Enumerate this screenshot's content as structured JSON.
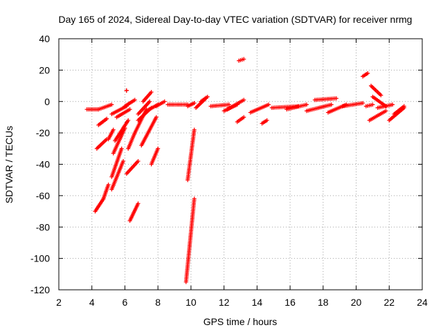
{
  "chart_data": {
    "type": "scatter",
    "title": "Day 165 of 2024, Sidereal Day-to-day VTEC variation (SDTVAR) for receiver nrmg",
    "xlabel": "GPS time / hours",
    "ylabel": "SDTVAR / TECUs",
    "xlim": [
      2,
      24
    ],
    "ylim": [
      -120,
      40
    ],
    "x_ticks": [
      "2",
      "4",
      "6",
      "8",
      "10",
      "12",
      "14",
      "16",
      "18",
      "20",
      "22",
      "24"
    ],
    "y_ticks": [
      "40",
      "20",
      "0",
      "-20",
      "-40",
      "-60",
      "-80",
      "-100",
      "-120"
    ],
    "grid": true,
    "marker": "+",
    "color": "#ff0000",
    "segments": [
      {
        "x": [
          3.7,
          4.4
        ],
        "y": [
          -5,
          -5
        ]
      },
      {
        "x": [
          4.4,
          5.2
        ],
        "y": [
          -5,
          -2
        ]
      },
      {
        "x": [
          4.2,
          4.7
        ],
        "y": [
          -70,
          -62
        ]
      },
      {
        "x": [
          4.7,
          5.0
        ],
        "y": [
          -62,
          -53
        ]
      },
      {
        "x": [
          4.3,
          4.9
        ],
        "y": [
          -30,
          -24
        ]
      },
      {
        "x": [
          4.4,
          4.9
        ],
        "y": [
          -15,
          -11
        ]
      },
      {
        "x": [
          5.0,
          5.3
        ],
        "y": [
          -24,
          -18
        ]
      },
      {
        "x": [
          5.2,
          5.9
        ],
        "y": [
          -56,
          -38
        ]
      },
      {
        "x": [
          5.2,
          5.8
        ],
        "y": [
          -48,
          -30
        ]
      },
      {
        "x": [
          5.3,
          6.0
        ],
        "y": [
          -33,
          -17
        ]
      },
      {
        "x": [
          5.4,
          6.2
        ],
        "y": [
          -25,
          -12
        ]
      },
      {
        "x": [
          5.5,
          6.3
        ],
        "y": [
          -10,
          -5
        ]
      },
      {
        "x": [
          5.2,
          6.1
        ],
        "y": [
          -8,
          -3
        ]
      },
      {
        "x": [
          6.0,
          6.6
        ],
        "y": [
          -3,
          1
        ]
      },
      {
        "x": [
          6.1,
          6.1
        ],
        "y": [
          7,
          7
        ]
      },
      {
        "x": [
          6.2,
          6.6
        ],
        "y": [
          -30,
          -20
        ]
      },
      {
        "x": [
          6.1,
          6.8
        ],
        "y": [
          -46,
          -38
        ]
      },
      {
        "x": [
          6.3,
          6.8
        ],
        "y": [
          -76,
          -65
        ]
      },
      {
        "x": [
          6.6,
          7.3
        ],
        "y": [
          -20,
          -5
        ]
      },
      {
        "x": [
          6.8,
          7.6
        ],
        "y": [
          -12,
          -4
        ]
      },
      {
        "x": [
          7.0,
          7.9
        ],
        "y": [
          -28,
          -10
        ]
      },
      {
        "x": [
          7.6,
          8.0
        ],
        "y": [
          -40,
          -30
        ]
      },
      {
        "x": [
          6.8,
          7.5
        ],
        "y": [
          -8,
          0
        ]
      },
      {
        "x": [
          7.1,
          7.6
        ],
        "y": [
          0,
          6
        ]
      },
      {
        "x": [
          7.3,
          8.0
        ],
        "y": [
          -6,
          -2
        ]
      },
      {
        "x": [
          7.9,
          8.4
        ],
        "y": [
          -3,
          0
        ]
      },
      {
        "x": [
          8.6,
          9.8
        ],
        "y": [
          -2,
          -2
        ]
      },
      {
        "x": [
          9.8,
          10.2
        ],
        "y": [
          -3,
          -1
        ]
      },
      {
        "x": [
          9.8,
          10.2
        ],
        "y": [
          -50,
          -18
        ]
      },
      {
        "x": [
          9.7,
          10.2
        ],
        "y": [
          -115,
          -62
        ]
      },
      {
        "x": [
          10.3,
          10.9
        ],
        "y": [
          -4,
          2
        ]
      },
      {
        "x": [
          10.6,
          11.0
        ],
        "y": [
          0,
          3
        ]
      },
      {
        "x": [
          11.2,
          12.3
        ],
        "y": [
          -3,
          -2
        ]
      },
      {
        "x": [
          12.2,
          13.2
        ],
        "y": [
          -5,
          1
        ]
      },
      {
        "x": [
          12.0,
          12.8
        ],
        "y": [
          -6,
          -2
        ]
      },
      {
        "x": [
          12.8,
          13.2
        ],
        "y": [
          -13,
          -10
        ]
      },
      {
        "x": [
          12.9,
          13.2
        ],
        "y": [
          26,
          27
        ]
      },
      {
        "x": [
          13.6,
          14.7
        ],
        "y": [
          -7,
          -2
        ]
      },
      {
        "x": [
          14.3,
          14.6
        ],
        "y": [
          -14,
          -12
        ]
      },
      {
        "x": [
          14.9,
          16.5
        ],
        "y": [
          -4,
          -3
        ]
      },
      {
        "x": [
          15.8,
          17.0
        ],
        "y": [
          -5,
          -2
        ]
      },
      {
        "x": [
          17.0,
          18.5
        ],
        "y": [
          -6,
          -2
        ]
      },
      {
        "x": [
          17.5,
          18.8
        ],
        "y": [
          1,
          2
        ]
      },
      {
        "x": [
          18.3,
          19.4
        ],
        "y": [
          -7,
          -2
        ]
      },
      {
        "x": [
          19.2,
          20.4
        ],
        "y": [
          -3,
          -1
        ]
      },
      {
        "x": [
          20.4,
          20.7
        ],
        "y": [
          16,
          18
        ]
      },
      {
        "x": [
          20.6,
          21.0
        ],
        "y": [
          -3,
          -2
        ]
      },
      {
        "x": [
          20.8,
          21.8
        ],
        "y": [
          -12,
          -6
        ]
      },
      {
        "x": [
          20.9,
          21.5
        ],
        "y": [
          10,
          4
        ]
      },
      {
        "x": [
          21.0,
          21.8
        ],
        "y": [
          3,
          -3
        ]
      },
      {
        "x": [
          21.3,
          22.2
        ],
        "y": [
          -4,
          -2
        ]
      },
      {
        "x": [
          22.0,
          22.9
        ],
        "y": [
          -12,
          -4
        ]
      },
      {
        "x": [
          22.3,
          22.9
        ],
        "y": [
          -8,
          -3
        ]
      }
    ]
  }
}
